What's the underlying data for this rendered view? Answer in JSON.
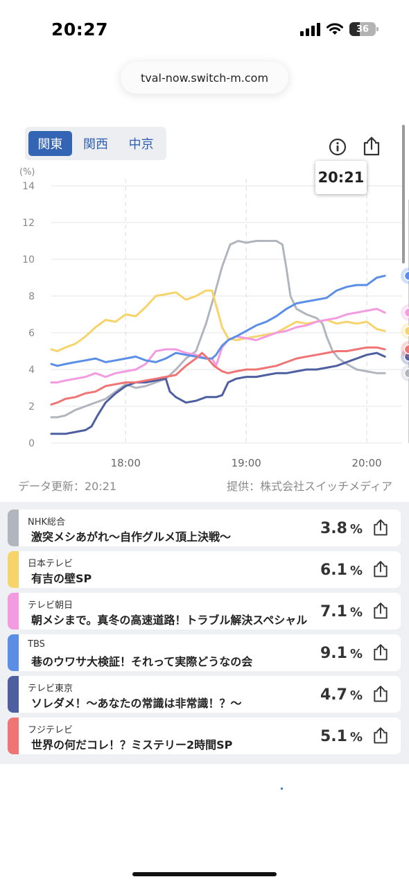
{
  "status_bar": {
    "time": "20:27",
    "battery": "36"
  },
  "browser": {
    "url": "tval-now.switch-m.com"
  },
  "region_tabs": [
    {
      "label": "関東",
      "active": true
    },
    {
      "label": "関西",
      "active": false
    },
    {
      "label": "中京",
      "active": false
    }
  ],
  "tooltip_time": "20:21",
  "chart_data": {
    "type": "line",
    "ylabel": "(%)",
    "ylim": [
      0,
      14
    ],
    "y_ticks": [
      "0",
      "2",
      "4",
      "6",
      "8",
      "10",
      "12",
      "14"
    ],
    "x_ticks": [
      "18:00",
      "19:00",
      "20:00"
    ],
    "xlim_minutes": [
      1043,
      1221
    ],
    "grid": true,
    "series": [
      {
        "name": "NHK総合",
        "color": "#b1b5bd",
        "points": [
          [
            1043,
            1.4
          ],
          [
            1046,
            1.4
          ],
          [
            1050,
            1.5
          ],
          [
            1055,
            1.8
          ],
          [
            1060,
            2.0
          ],
          [
            1065,
            2.2
          ],
          [
            1070,
            2.4
          ],
          [
            1075,
            2.8
          ],
          [
            1080,
            3.2
          ],
          [
            1085,
            3.0
          ],
          [
            1090,
            3.1
          ],
          [
            1095,
            3.3
          ],
          [
            1100,
            3.5
          ],
          [
            1105,
            4.0
          ],
          [
            1110,
            4.6
          ],
          [
            1115,
            5.0
          ],
          [
            1120,
            6.5
          ],
          [
            1124,
            8.0
          ],
          [
            1128,
            9.6
          ],
          [
            1132,
            10.8
          ],
          [
            1136,
            11.0
          ],
          [
            1140,
            10.9
          ],
          [
            1145,
            11.0
          ],
          [
            1150,
            11.0
          ],
          [
            1155,
            11.0
          ],
          [
            1158,
            10.8
          ],
          [
            1160,
            9.5
          ],
          [
            1162,
            8.0
          ],
          [
            1165,
            7.3
          ],
          [
            1170,
            7.0
          ],
          [
            1175,
            6.8
          ],
          [
            1178,
            6.5
          ],
          [
            1180,
            5.8
          ],
          [
            1183,
            5.0
          ],
          [
            1186,
            4.6
          ],
          [
            1190,
            4.3
          ],
          [
            1195,
            4.0
          ],
          [
            1200,
            3.9
          ],
          [
            1205,
            3.8
          ],
          [
            1209,
            3.8
          ]
        ]
      },
      {
        "name": "日本テレビ",
        "color": "#f7d46a",
        "points": [
          [
            1043,
            5.1
          ],
          [
            1046,
            5.0
          ],
          [
            1050,
            5.2
          ],
          [
            1055,
            5.4
          ],
          [
            1060,
            5.8
          ],
          [
            1065,
            6.3
          ],
          [
            1070,
            6.7
          ],
          [
            1075,
            6.6
          ],
          [
            1080,
            7.0
          ],
          [
            1085,
            6.9
          ],
          [
            1090,
            7.4
          ],
          [
            1095,
            8.0
          ],
          [
            1100,
            8.1
          ],
          [
            1105,
            8.2
          ],
          [
            1110,
            7.8
          ],
          [
            1115,
            8.0
          ],
          [
            1120,
            8.3
          ],
          [
            1123,
            8.3
          ],
          [
            1125,
            7.5
          ],
          [
            1128,
            6.3
          ],
          [
            1131,
            5.7
          ],
          [
            1135,
            5.6
          ],
          [
            1140,
            5.7
          ],
          [
            1145,
            5.8
          ],
          [
            1150,
            5.9
          ],
          [
            1155,
            6.0
          ],
          [
            1160,
            6.3
          ],
          [
            1165,
            6.6
          ],
          [
            1170,
            6.5
          ],
          [
            1175,
            6.6
          ],
          [
            1180,
            6.7
          ],
          [
            1185,
            6.5
          ],
          [
            1190,
            6.6
          ],
          [
            1195,
            6.5
          ],
          [
            1200,
            6.6
          ],
          [
            1205,
            6.2
          ],
          [
            1209,
            6.1
          ]
        ]
      },
      {
        "name": "テレビ朝日",
        "color": "#f39ae0",
        "points": [
          [
            1043,
            3.3
          ],
          [
            1046,
            3.3
          ],
          [
            1050,
            3.4
          ],
          [
            1055,
            3.5
          ],
          [
            1060,
            3.6
          ],
          [
            1065,
            3.8
          ],
          [
            1070,
            3.6
          ],
          [
            1075,
            3.8
          ],
          [
            1080,
            3.9
          ],
          [
            1085,
            4.0
          ],
          [
            1090,
            4.3
          ],
          [
            1095,
            5.0
          ],
          [
            1100,
            5.1
          ],
          [
            1105,
            5.1
          ],
          [
            1110,
            4.9
          ],
          [
            1115,
            4.8
          ],
          [
            1120,
            4.6
          ],
          [
            1123,
            4.6
          ],
          [
            1125,
            4.2
          ],
          [
            1128,
            5.2
          ],
          [
            1131,
            5.6
          ],
          [
            1135,
            5.8
          ],
          [
            1140,
            5.7
          ],
          [
            1145,
            5.6
          ],
          [
            1150,
            5.8
          ],
          [
            1155,
            6.0
          ],
          [
            1160,
            6.1
          ],
          [
            1165,
            6.3
          ],
          [
            1170,
            6.4
          ],
          [
            1175,
            6.6
          ],
          [
            1180,
            6.7
          ],
          [
            1185,
            6.8
          ],
          [
            1190,
            7.0
          ],
          [
            1195,
            7.1
          ],
          [
            1200,
            7.2
          ],
          [
            1205,
            7.3
          ],
          [
            1209,
            7.1
          ]
        ]
      },
      {
        "name": "TBS",
        "color": "#5b8ee6",
        "points": [
          [
            1043,
            4.3
          ],
          [
            1046,
            4.2
          ],
          [
            1050,
            4.3
          ],
          [
            1055,
            4.4
          ],
          [
            1060,
            4.5
          ],
          [
            1065,
            4.6
          ],
          [
            1070,
            4.4
          ],
          [
            1075,
            4.5
          ],
          [
            1080,
            4.6
          ],
          [
            1085,
            4.7
          ],
          [
            1090,
            4.5
          ],
          [
            1095,
            4.4
          ],
          [
            1100,
            4.6
          ],
          [
            1105,
            4.9
          ],
          [
            1110,
            4.8
          ],
          [
            1115,
            4.7
          ],
          [
            1120,
            4.6
          ],
          [
            1123,
            4.6
          ],
          [
            1125,
            4.8
          ],
          [
            1128,
            5.3
          ],
          [
            1131,
            5.6
          ],
          [
            1135,
            5.8
          ],
          [
            1140,
            6.1
          ],
          [
            1145,
            6.4
          ],
          [
            1150,
            6.6
          ],
          [
            1155,
            6.9
          ],
          [
            1160,
            7.3
          ],
          [
            1165,
            7.6
          ],
          [
            1170,
            7.7
          ],
          [
            1175,
            7.8
          ],
          [
            1180,
            7.9
          ],
          [
            1185,
            8.3
          ],
          [
            1190,
            8.5
          ],
          [
            1195,
            8.6
          ],
          [
            1200,
            8.6
          ],
          [
            1205,
            9.0
          ],
          [
            1209,
            9.1
          ]
        ]
      },
      {
        "name": "テレビ東京",
        "color": "#4d5ea1",
        "points": [
          [
            1043,
            0.5
          ],
          [
            1046,
            0.5
          ],
          [
            1050,
            0.5
          ],
          [
            1055,
            0.6
          ],
          [
            1060,
            0.7
          ],
          [
            1063,
            0.9
          ],
          [
            1066,
            1.5
          ],
          [
            1070,
            2.2
          ],
          [
            1075,
            2.7
          ],
          [
            1080,
            3.1
          ],
          [
            1085,
            3.3
          ],
          [
            1090,
            3.3
          ],
          [
            1095,
            3.4
          ],
          [
            1100,
            3.5
          ],
          [
            1102,
            2.8
          ],
          [
            1105,
            2.5
          ],
          [
            1110,
            2.2
          ],
          [
            1115,
            2.3
          ],
          [
            1120,
            2.5
          ],
          [
            1125,
            2.5
          ],
          [
            1128,
            2.6
          ],
          [
            1131,
            3.3
          ],
          [
            1135,
            3.5
          ],
          [
            1140,
            3.6
          ],
          [
            1145,
            3.6
          ],
          [
            1150,
            3.7
          ],
          [
            1155,
            3.8
          ],
          [
            1160,
            3.8
          ],
          [
            1165,
            3.9
          ],
          [
            1170,
            4.0
          ],
          [
            1175,
            4.0
          ],
          [
            1180,
            4.1
          ],
          [
            1185,
            4.2
          ],
          [
            1190,
            4.4
          ],
          [
            1195,
            4.6
          ],
          [
            1200,
            4.8
          ],
          [
            1205,
            4.9
          ],
          [
            1209,
            4.7
          ]
        ]
      },
      {
        "name": "フジテレビ",
        "color": "#f07474",
        "points": [
          [
            1043,
            2.1
          ],
          [
            1046,
            2.2
          ],
          [
            1050,
            2.4
          ],
          [
            1055,
            2.5
          ],
          [
            1060,
            2.7
          ],
          [
            1065,
            2.8
          ],
          [
            1070,
            3.1
          ],
          [
            1075,
            3.2
          ],
          [
            1080,
            3.3
          ],
          [
            1085,
            3.3
          ],
          [
            1090,
            3.4
          ],
          [
            1095,
            3.5
          ],
          [
            1100,
            3.6
          ],
          [
            1105,
            3.7
          ],
          [
            1110,
            4.2
          ],
          [
            1115,
            4.6
          ],
          [
            1118,
            4.9
          ],
          [
            1120,
            4.7
          ],
          [
            1124,
            4.2
          ],
          [
            1128,
            3.9
          ],
          [
            1131,
            3.8
          ],
          [
            1135,
            3.9
          ],
          [
            1140,
            4.0
          ],
          [
            1145,
            4.0
          ],
          [
            1150,
            4.1
          ],
          [
            1155,
            4.2
          ],
          [
            1160,
            4.4
          ],
          [
            1165,
            4.6
          ],
          [
            1170,
            4.7
          ],
          [
            1175,
            4.8
          ],
          [
            1180,
            4.9
          ],
          [
            1185,
            5.0
          ],
          [
            1190,
            5.0
          ],
          [
            1195,
            5.1
          ],
          [
            1200,
            5.2
          ],
          [
            1205,
            5.2
          ],
          [
            1209,
            5.1
          ]
        ]
      }
    ]
  },
  "footer": {
    "updated": "データ更新：20:21",
    "provider": "提供：株式会社スイッチメディア"
  },
  "channels": [
    {
      "name": "NHK総合",
      "program": "激突メシあがれ～自作グルメ頂上決戦～",
      "rating": "3.8",
      "unit": "%",
      "color": "#b1b5bd"
    },
    {
      "name": "日本テレビ",
      "program": "有吉の壁SP",
      "rating": "6.1",
      "unit": "%",
      "color": "#f7d46a"
    },
    {
      "name": "テレビ朝日",
      "program": "朝メシまで。真冬の高速道路！トラブル解決スペシャル",
      "rating": "7.1",
      "unit": "%",
      "color": "#f39ae0"
    },
    {
      "name": "TBS",
      "program": "巷のウワサ大検証！それって実際どうなの会",
      "rating": "9.1",
      "unit": "%",
      "color": "#5b8ee6"
    },
    {
      "name": "テレビ東京",
      "program": "ソレダメ！～あなたの常識は非常識！？～",
      "rating": "4.7",
      "unit": "%",
      "color": "#4d5ea1"
    },
    {
      "name": "フジテレビ",
      "program": "世界の何だコレ！？ミステリー2時間SP",
      "rating": "5.1",
      "unit": "%",
      "color": "#f07474"
    }
  ]
}
